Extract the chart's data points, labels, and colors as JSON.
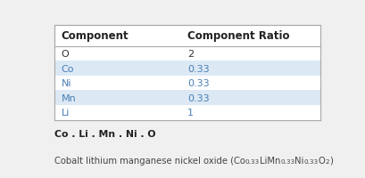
{
  "table_headers": [
    "Component",
    "Component Ratio"
  ],
  "table_rows": [
    [
      "O",
      "2"
    ],
    [
      "Co",
      "0.33"
    ],
    [
      "Ni",
      "0.33"
    ],
    [
      "Mn",
      "0.33"
    ],
    [
      "Li",
      "1"
    ]
  ],
  "row_colors": [
    "#ffffff",
    "#dce9f5",
    "#ffffff",
    "#dce9f5",
    "#ffffff"
  ],
  "border_color": "#aaaaaa",
  "text_color_normal": "#333333",
  "text_color_blue": "#4a7eb5",
  "bold_label": "Co . Li . Mn . Ni . O",
  "background_color": "#f0f0f0",
  "fig_width": 4.1,
  "fig_height": 2.01,
  "dpi": 100
}
